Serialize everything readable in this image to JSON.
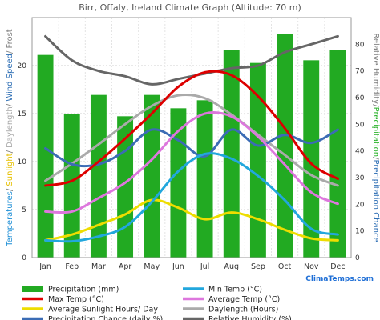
{
  "chart_data": {
    "type": "bar",
    "title": "Birr, Offaly, Ireland Climate Graph (Altitude: 70 m)",
    "categories": [
      "Jan",
      "Feb",
      "Mar",
      "Apr",
      "May",
      "Jun",
      "Jul",
      "Aug",
      "Sep",
      "Oct",
      "Nov",
      "Dec"
    ],
    "left_axis": {
      "label_parts": [
        {
          "text": "Temperatures",
          "color": "#1f8fd6"
        },
        {
          "text": "/ ",
          "color": "#7f7f7f"
        },
        {
          "text": "Sunlight",
          "color": "#e6c000"
        },
        {
          "text": "/ ",
          "color": "#7f7f7f"
        },
        {
          "text": "Daylength",
          "color": "#a9a9a9"
        },
        {
          "text": "/ ",
          "color": "#7f7f7f"
        },
        {
          "text": "Wind Speed",
          "color": "#2f6fb5"
        },
        {
          "text": "/ ",
          "color": "#7f7f7f"
        },
        {
          "text": "Frost",
          "color": "#7f7f7f"
        }
      ],
      "ylim": [
        0,
        25
      ],
      "ticks": [
        "0",
        "5",
        "10",
        "15",
        "20"
      ]
    },
    "right_axis": {
      "label_parts": [
        {
          "text": "Relative Humidity",
          "color": "#7f7f7f"
        },
        {
          "text": "/",
          "color": "#7f7f7f"
        },
        {
          "text": "Precipitation",
          "color": "#2bb32b"
        },
        {
          "text": "/",
          "color": "#7f7f7f"
        },
        {
          "text": "Precipitation Chance",
          "color": "#2f6fb5"
        }
      ],
      "ylim": [
        0,
        90
      ],
      "ticks": [
        "0",
        "10",
        "20",
        "30",
        "40",
        "50",
        "60",
        "70",
        "80"
      ]
    },
    "bars": {
      "name": "Precipitation (mm)",
      "axis": "right",
      "color": "#22aa22",
      "values": [
        76,
        54,
        61,
        53,
        61,
        56,
        59,
        78,
        73,
        84,
        74,
        78
      ]
    },
    "series": [
      {
        "name": "Max Temp (°C)",
        "axis": "left",
        "color": "#dd0000",
        "values": [
          7.5,
          8.0,
          10.0,
          12.4,
          15.0,
          17.8,
          19.3,
          19.0,
          16.8,
          13.5,
          9.8,
          8.2
        ]
      },
      {
        "name": "Min Temp (°C)",
        "axis": "left",
        "color": "#22a7dd",
        "values": [
          1.8,
          1.7,
          2.2,
          3.2,
          5.8,
          9.0,
          10.8,
          10.3,
          8.5,
          6.0,
          3.0,
          2.4
        ]
      },
      {
        "name": "Average Temp (°C)",
        "axis": "left",
        "color": "#dd77dd",
        "values": [
          4.8,
          4.8,
          6.2,
          7.8,
          10.2,
          13.2,
          15.0,
          14.7,
          12.6,
          9.7,
          6.8,
          5.6
        ]
      },
      {
        "name": "Average Sunlight Hours/ Day",
        "axis": "left",
        "color": "#eedd00",
        "values": [
          1.8,
          2.4,
          3.4,
          4.5,
          6.0,
          5.2,
          4.0,
          4.7,
          4.0,
          2.9,
          2.0,
          1.8
        ]
      },
      {
        "name": "Daylength (Hours)",
        "axis": "left",
        "color": "#aaaaaa",
        "values": [
          8.0,
          9.8,
          11.8,
          13.9,
          15.8,
          16.9,
          16.6,
          14.9,
          12.8,
          10.7,
          8.6,
          7.5
        ]
      },
      {
        "name": "Precipitation Chance (daily %)",
        "axis": "right",
        "color": "#3b6cb5",
        "values": [
          41,
          35,
          35,
          40,
          48,
          44,
          38,
          48,
          42,
          46,
          43,
          48
        ]
      },
      {
        "name": "Relative Humidity (%)",
        "axis": "right",
        "color": "#666666",
        "values": [
          83,
          74,
          70,
          68,
          65,
          67,
          69,
          71,
          72,
          77,
          80,
          83
        ]
      }
    ],
    "legend": [
      {
        "name": "Precipitation (mm)",
        "kind": "box",
        "color": "#22aa22"
      },
      {
        "name": "Min Temp (°C)",
        "kind": "line",
        "color": "#22a7dd"
      },
      {
        "name": "Max Temp (°C)",
        "kind": "line",
        "color": "#dd0000"
      },
      {
        "name": "Average Temp (°C)",
        "kind": "line",
        "color": "#dd77dd"
      },
      {
        "name": "Average Sunlight Hours/ Day",
        "kind": "line",
        "color": "#eedd00"
      },
      {
        "name": "Daylength (Hours)",
        "kind": "line",
        "color": "#aaaaaa"
      },
      {
        "name": "Precipitation Chance (daily %)",
        "kind": "line",
        "color": "#3b6cb5"
      },
      {
        "name": "Relative Humidity (%)",
        "kind": "line",
        "color": "#666666"
      }
    ],
    "legend_placement": "bottom",
    "grid": true,
    "watermark": "ClimaTemps.com"
  }
}
